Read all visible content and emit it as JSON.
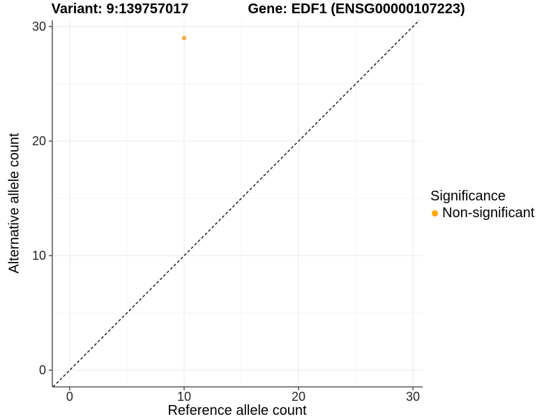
{
  "chart_data": {
    "type": "scatter",
    "title_left": "Variant: 9:139757017",
    "title_right": "Gene: EDF1 (ENSG00000107223)",
    "xlabel": "Reference allele count",
    "ylabel": "Alternative allele count",
    "xticks": [
      0,
      10,
      20,
      30
    ],
    "yticks": [
      0,
      10,
      20,
      30
    ],
    "xminor": [
      5,
      15,
      25
    ],
    "yminor": [
      5,
      15,
      25
    ],
    "xlim": [
      -1.52,
      30.85
    ],
    "ylim": [
      -1.46,
      30.55
    ],
    "grid": true,
    "points": [
      {
        "x": 10,
        "y": 29,
        "series": "Non-significant"
      }
    ],
    "reference_line": {
      "type": "identity",
      "slope": 1,
      "intercept": 0,
      "style": "dashed"
    },
    "legend": {
      "title": "Significance",
      "position": "right",
      "items": [
        {
          "label": "Non-significant",
          "color": "#FFA500",
          "marker": "circle"
        }
      ]
    },
    "colors": {
      "point": "#FAA43A",
      "reference_line": "#000000",
      "axis_line": "#3A3A3A",
      "grid_major": "#E8E8E8",
      "grid_minor": "#F3F3F3",
      "tick_text": "#262626",
      "text": "#000000",
      "background": "#FFFFFF"
    }
  }
}
